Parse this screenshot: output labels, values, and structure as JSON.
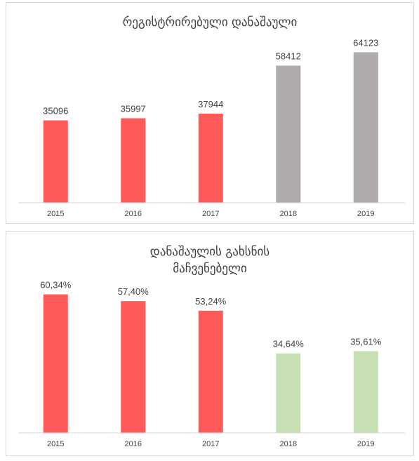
{
  "chart_data": [
    {
      "type": "bar",
      "title": "რეგისტრირებული დანაშაული",
      "categories": [
        "2015",
        "2016",
        "2017",
        "2018",
        "2019"
      ],
      "values": [
        35096,
        35997,
        37944,
        58412,
        64123
      ],
      "value_labels": [
        "35096",
        "35997",
        "37944",
        "58412",
        "64123"
      ],
      "bar_colors": [
        "#ff5a5a",
        "#ff5a5a",
        "#ff5a5a",
        "#afabab",
        "#afabab"
      ],
      "ylim": [
        0,
        75000
      ],
      "grid": false,
      "legend": "none"
    },
    {
      "type": "bar",
      "title": "დანაშაულის გახსნის მაჩვენებელი",
      "title_lines": [
        "დანაშაულის გახსნის",
        "მაჩვენებელი"
      ],
      "categories": [
        "2015",
        "2016",
        "2017",
        "2018",
        "2019"
      ],
      "values": [
        60.34,
        57.4,
        53.24,
        34.64,
        35.61
      ],
      "value_labels": [
        "60,34%",
        "57,40%",
        "53,24%",
        "34,64%",
        "35,61%"
      ],
      "bar_colors": [
        "#ff5a5a",
        "#ff5a5a",
        "#ff5a5a",
        "#c6e0b4",
        "#c6e0b4"
      ],
      "ylim": [
        0,
        66
      ],
      "grid": false,
      "legend": "none"
    }
  ]
}
